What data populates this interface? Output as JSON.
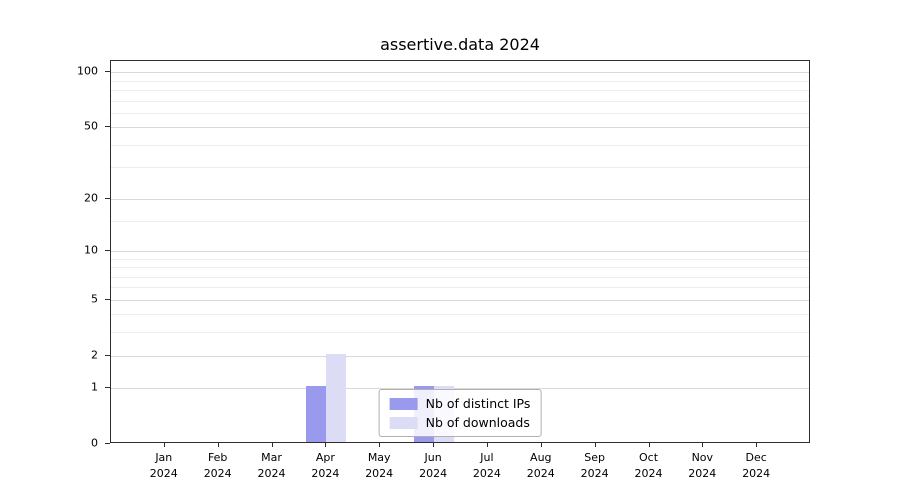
{
  "title": "assertive.data 2024",
  "chart_data": {
    "type": "bar",
    "title": "assertive.data 2024",
    "categories": [
      "Jan 2024",
      "Feb 2024",
      "Mar 2024",
      "Apr 2024",
      "May 2024",
      "Jun 2024",
      "Jul 2024",
      "Aug 2024",
      "Sep 2024",
      "Oct 2024",
      "Nov 2024",
      "Dec 2024"
    ],
    "series": [
      {
        "name": "Nb of distinct IPs",
        "color": "#9999ed",
        "values": [
          0,
          0,
          0,
          1,
          0,
          1,
          0,
          0,
          0,
          0,
          0,
          0
        ]
      },
      {
        "name": "Nb of downloads",
        "color": "#dcdcf7",
        "values": [
          0,
          0,
          0,
          2,
          0,
          1,
          0,
          0,
          0,
          0,
          0,
          0
        ]
      }
    ],
    "xlabel": "",
    "ylabel": "",
    "yscale": "log1p",
    "ylim": [
      0,
      115
    ],
    "y_ticks": [
      0,
      1,
      2,
      5,
      10,
      20,
      50,
      100
    ],
    "y_minor_ticks": [
      3,
      4,
      6,
      7,
      8,
      9,
      15,
      30,
      40,
      60,
      70,
      80,
      90
    ],
    "grid": "horizontal",
    "legend_position": "lower center"
  },
  "colors": {
    "grid_major": "#d9d9d9",
    "grid_minor": "#ededed",
    "axis": "#2e2e2e",
    "text": "#000000",
    "background": "#ffffff"
  }
}
